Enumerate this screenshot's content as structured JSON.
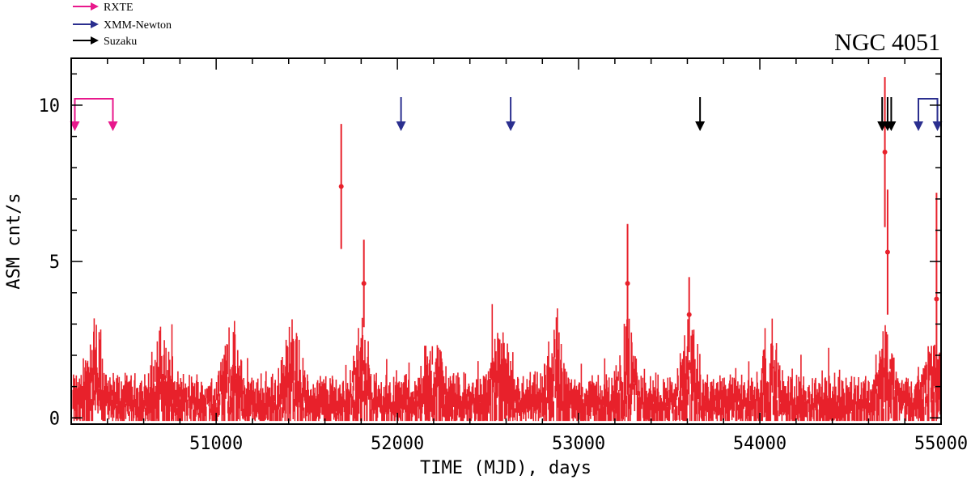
{
  "chart_data": {
    "type": "scatter",
    "title": "NGC 4051",
    "xlabel": "TIME (MJD), days",
    "ylabel": "ASM cnt/s",
    "xlim": [
      50200,
      55000
    ],
    "ylim": [
      -0.2,
      11.5
    ],
    "xticks": [
      "51000",
      "52000",
      "53000",
      "54000",
      "55000"
    ],
    "yticks": [
      "0",
      "5",
      "10"
    ],
    "grid": false,
    "legend_placement": "top-left, above plot",
    "legend": [
      {
        "name": "RXTE",
        "color": "#e8188c"
      },
      {
        "name": "XMM-Newton",
        "color": "#2b2f8f"
      },
      {
        "name": "Suzaku",
        "color": "#000000"
      }
    ],
    "series_color": "#e8212b",
    "notable_points": [
      {
        "x": 51690,
        "y": 7.4,
        "err": 2.0
      },
      {
        "x": 51815,
        "y": 4.3,
        "err": 1.4
      },
      {
        "x": 53270,
        "y": 4.3,
        "err": 1.9
      },
      {
        "x": 53610,
        "y": 3.3,
        "err": 1.2
      },
      {
        "x": 54690,
        "y": 8.5,
        "err": 2.4
      },
      {
        "x": 54705,
        "y": 5.3,
        "err": 2.0
      },
      {
        "x": 54975,
        "y": 3.8,
        "err": 3.4
      }
    ],
    "observation_markers": [
      {
        "instrument": "RXTE",
        "x": [
          50220,
          50430
        ],
        "bracket": true
      },
      {
        "instrument": "XMM-Newton",
        "x": [
          52020
        ]
      },
      {
        "instrument": "XMM-Newton",
        "x": [
          52625
        ]
      },
      {
        "instrument": "XMM-Newton",
        "x": [
          54875,
          54980
        ],
        "bracket": true
      },
      {
        "instrument": "Suzaku",
        "x": [
          53670
        ]
      },
      {
        "instrument": "Suzaku",
        "x": [
          54675,
          54705,
          54725
        ]
      }
    ]
  }
}
